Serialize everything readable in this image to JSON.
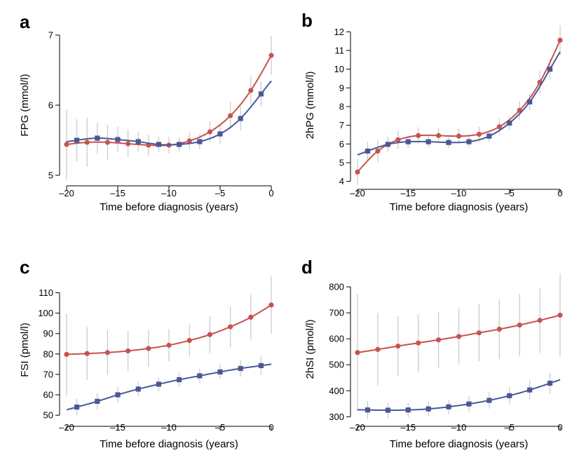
{
  "series_colors": {
    "red": "#c8524f",
    "blue": "#4a5896"
  },
  "chart_data": [
    {
      "panel": "a",
      "type": "line",
      "xlabel": "Time before diagnosis (years)",
      "ylabel": "FPG (mmol/l)",
      "xlim": [
        -20,
        0
      ],
      "ylim": [
        4.95,
        7.05
      ],
      "xticks": [
        -20,
        -15,
        -10,
        -5,
        0
      ],
      "yticks": [
        5,
        6,
        7
      ],
      "grid": false,
      "series": [
        {
          "color": "#c8524f",
          "marker": "circle",
          "x": [
            -20,
            -18,
            -16,
            -14,
            -12,
            -10,
            -8,
            -6,
            -4,
            -2,
            0
          ],
          "y": [
            5.44,
            5.47,
            5.47,
            5.45,
            5.43,
            5.43,
            5.49,
            5.62,
            5.85,
            6.21,
            6.71
          ],
          "err": [
            0.5,
            0.35,
            0.25,
            0.2,
            0.15,
            0.12,
            0.12,
            0.15,
            0.2,
            0.2,
            0.28
          ]
        },
        {
          "color": "#4a5896",
          "marker": "square",
          "x": [
            -19,
            -17,
            -15,
            -13,
            -11,
            -9,
            -7,
            -5,
            -3,
            -1
          ],
          "y": [
            5.5,
            5.53,
            5.51,
            5.48,
            5.44,
            5.44,
            5.48,
            5.59,
            5.81,
            6.16
          ],
          "err": [
            0.3,
            0.22,
            0.18,
            0.14,
            0.11,
            0.1,
            0.11,
            0.14,
            0.17,
            0.18
          ]
        }
      ]
    },
    {
      "panel": "b",
      "type": "line",
      "xlabel": "Time before diagnosis (years)",
      "ylabel": "2hPG (mmol/l)",
      "xlim": [
        -20,
        0
      ],
      "ylim": [
        3.95,
        12.2
      ],
      "xticks": [
        -20,
        -15,
        -10,
        -5,
        0
      ],
      "yticks": [
        4,
        5,
        6,
        7,
        8,
        9,
        10,
        11,
        12
      ],
      "grid": false,
      "series": [
        {
          "color": "#c8524f",
          "marker": "circle",
          "x": [
            -20,
            -18,
            -16,
            -14,
            -12,
            -10,
            -8,
            -6,
            -4,
            -2,
            0
          ],
          "y": [
            4.5,
            5.62,
            6.22,
            6.45,
            6.45,
            6.42,
            6.52,
            6.92,
            7.8,
            9.3,
            11.55
          ],
          "err": [
            0.7,
            0.6,
            0.5,
            0.45,
            0.4,
            0.4,
            0.4,
            0.45,
            0.5,
            0.6,
            0.8
          ]
        },
        {
          "color": "#4a5896",
          "marker": "square",
          "x": [
            -19,
            -17,
            -15,
            -13,
            -11,
            -9,
            -7,
            -5,
            -3,
            -1
          ],
          "y": [
            5.62,
            5.98,
            6.12,
            6.12,
            6.08,
            6.12,
            6.42,
            7.12,
            8.25,
            10.0
          ],
          "err": [
            0.5,
            0.4,
            0.35,
            0.3,
            0.3,
            0.3,
            0.32,
            0.38,
            0.45,
            0.55
          ]
        }
      ]
    },
    {
      "panel": "c",
      "type": "line",
      "xlabel": "Time before diagnosis (years)",
      "ylabel": "FSI (pmol/l)",
      "xlim": [
        -20,
        0
      ],
      "ylim": [
        48,
        116
      ],
      "xticks": [
        -20,
        -15,
        -10,
        -5,
        0
      ],
      "yticks": [
        50,
        60,
        70,
        80,
        90,
        100,
        110
      ],
      "grid": false,
      "series": [
        {
          "color": "#c8524f",
          "marker": "circle",
          "x": [
            -20,
            -18,
            -16,
            -14,
            -12,
            -10,
            -8,
            -6,
            -4,
            -2,
            0
          ],
          "y": [
            79.8,
            80.2,
            80.7,
            81.5,
            82.7,
            84.3,
            86.6,
            89.5,
            93.3,
            98.0,
            104.0
          ],
          "err": [
            20,
            13,
            11,
            10,
            9,
            8,
            8,
            9,
            10,
            11,
            14
          ]
        },
        {
          "color": "#4a5896",
          "marker": "square",
          "x": [
            -19,
            -17,
            -15,
            -13,
            -11,
            -9,
            -7,
            -5,
            -3,
            -1
          ],
          "y": [
            54.0,
            56.8,
            60.0,
            62.8,
            65.2,
            67.4,
            69.3,
            71.2,
            72.9,
            74.3
          ],
          "err": [
            4,
            4,
            4,
            3.5,
            3.5,
            3.5,
            3.5,
            3.5,
            4,
            4.5
          ]
        }
      ]
    },
    {
      "panel": "d",
      "type": "line",
      "xlabel": "Time before diagnosis (years)",
      "ylabel": "2hSI (pmol/l)",
      "xlim": [
        -20,
        0
      ],
      "ylim": [
        290,
        830
      ],
      "xticks": [
        -20,
        -15,
        -10,
        -5,
        0
      ],
      "yticks": [
        300,
        400,
        500,
        600,
        700,
        800
      ],
      "grid": false,
      "series": [
        {
          "color": "#c8524f",
          "marker": "circle",
          "x": [
            -20,
            -18,
            -16,
            -14,
            -12,
            -10,
            -8,
            -6,
            -4,
            -2,
            0
          ],
          "y": [
            547,
            559,
            572,
            584,
            596,
            609,
            623,
            637,
            653,
            671,
            691
          ],
          "err": [
            225,
            140,
            115,
            110,
            108,
            108,
            110,
            115,
            120,
            125,
            160
          ]
        },
        {
          "color": "#4a5896",
          "marker": "square",
          "x": [
            -19,
            -17,
            -15,
            -13,
            -11,
            -9,
            -7,
            -5,
            -3,
            -1
          ],
          "y": [
            326,
            325,
            326,
            330,
            338,
            349,
            363,
            381,
            403,
            429
          ],
          "err": [
            35,
            30,
            28,
            28,
            28,
            30,
            32,
            34,
            36,
            40
          ]
        }
      ]
    }
  ]
}
